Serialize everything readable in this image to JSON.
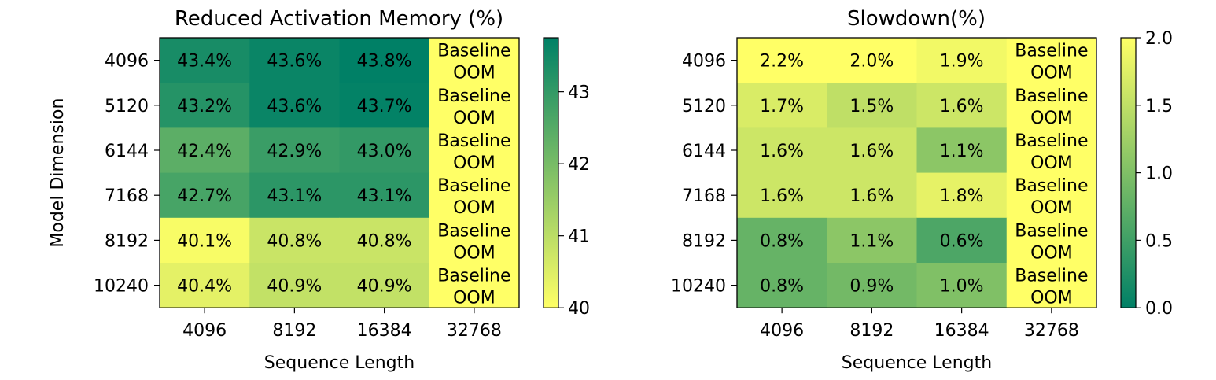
{
  "chart_data": [
    {
      "type": "heatmap",
      "title": "Reduced Activation Memory (%)",
      "xlabel": "Sequence Length",
      "ylabel": "Model Dimension",
      "x_categories": [
        "4096",
        "8192",
        "16384",
        "32768"
      ],
      "y_categories": [
        "4096",
        "5120",
        "6144",
        "7168",
        "8192",
        "10240"
      ],
      "values": [
        [
          43.4,
          43.6,
          43.8,
          null
        ],
        [
          43.2,
          43.6,
          43.7,
          null
        ],
        [
          42.4,
          42.9,
          43.0,
          null
        ],
        [
          42.7,
          43.1,
          43.1,
          null
        ],
        [
          40.1,
          40.8,
          40.8,
          null
        ],
        [
          40.4,
          40.9,
          40.9,
          null
        ]
      ],
      "cell_labels": [
        [
          "43.4%",
          "43.6%",
          "43.8%",
          "Baseline\nOOM"
        ],
        [
          "43.2%",
          "43.6%",
          "43.7%",
          "Baseline\nOOM"
        ],
        [
          "42.4%",
          "42.9%",
          "43.0%",
          "Baseline\nOOM"
        ],
        [
          "42.7%",
          "43.1%",
          "43.1%",
          "Baseline\nOOM"
        ],
        [
          "40.1%",
          "40.8%",
          "40.8%",
          "Baseline\nOOM"
        ],
        [
          "40.4%",
          "40.9%",
          "40.9%",
          "Baseline\nOOM"
        ]
      ],
      "colorbar": {
        "vmin": 40,
        "vmax": 43.75,
        "ticks": [
          40,
          41,
          42,
          43
        ],
        "tick_labels": [
          "40",
          "41",
          "42",
          "43"
        ],
        "colormap": "summer_r",
        "low_color": "#ffff66",
        "high_color": "#008066"
      },
      "missing_value_color": "#ffff66"
    },
    {
      "type": "heatmap",
      "title": "Slowdown(%)",
      "xlabel": "Sequence Length",
      "ylabel": "",
      "x_categories": [
        "4096",
        "8192",
        "16384",
        "32768"
      ],
      "y_categories": [
        "4096",
        "5120",
        "6144",
        "7168",
        "8192",
        "10240"
      ],
      "values": [
        [
          2.2,
          2.0,
          1.9,
          null
        ],
        [
          1.7,
          1.5,
          1.6,
          null
        ],
        [
          1.6,
          1.6,
          1.1,
          null
        ],
        [
          1.6,
          1.6,
          1.8,
          null
        ],
        [
          0.8,
          1.1,
          0.6,
          null
        ],
        [
          0.8,
          0.9,
          1.0,
          null
        ]
      ],
      "cell_labels": [
        [
          "2.2%",
          "2.0%",
          "1.9%",
          "Baseline\nOOM"
        ],
        [
          "1.7%",
          "1.5%",
          "1.6%",
          "Baseline\nOOM"
        ],
        [
          "1.6%",
          "1.6%",
          "1.1%",
          "Baseline\nOOM"
        ],
        [
          "1.6%",
          "1.6%",
          "1.8%",
          "Baseline\nOOM"
        ],
        [
          "0.8%",
          "1.1%",
          "0.6%",
          "Baseline\nOOM"
        ],
        [
          "0.8%",
          "0.9%",
          "1.0%",
          "Baseline\nOOM"
        ]
      ],
      "colorbar": {
        "vmin": 0,
        "vmax": 2.0,
        "ticks": [
          0,
          0.5,
          1.0,
          1.5,
          2.0
        ],
        "tick_labels": [
          "0.0",
          "0.5",
          "1.0",
          "1.5",
          "2.0"
        ],
        "colormap": "summer",
        "low_color": "#008066",
        "high_color": "#ffff66"
      },
      "missing_value_color": "#ffff66"
    }
  ]
}
